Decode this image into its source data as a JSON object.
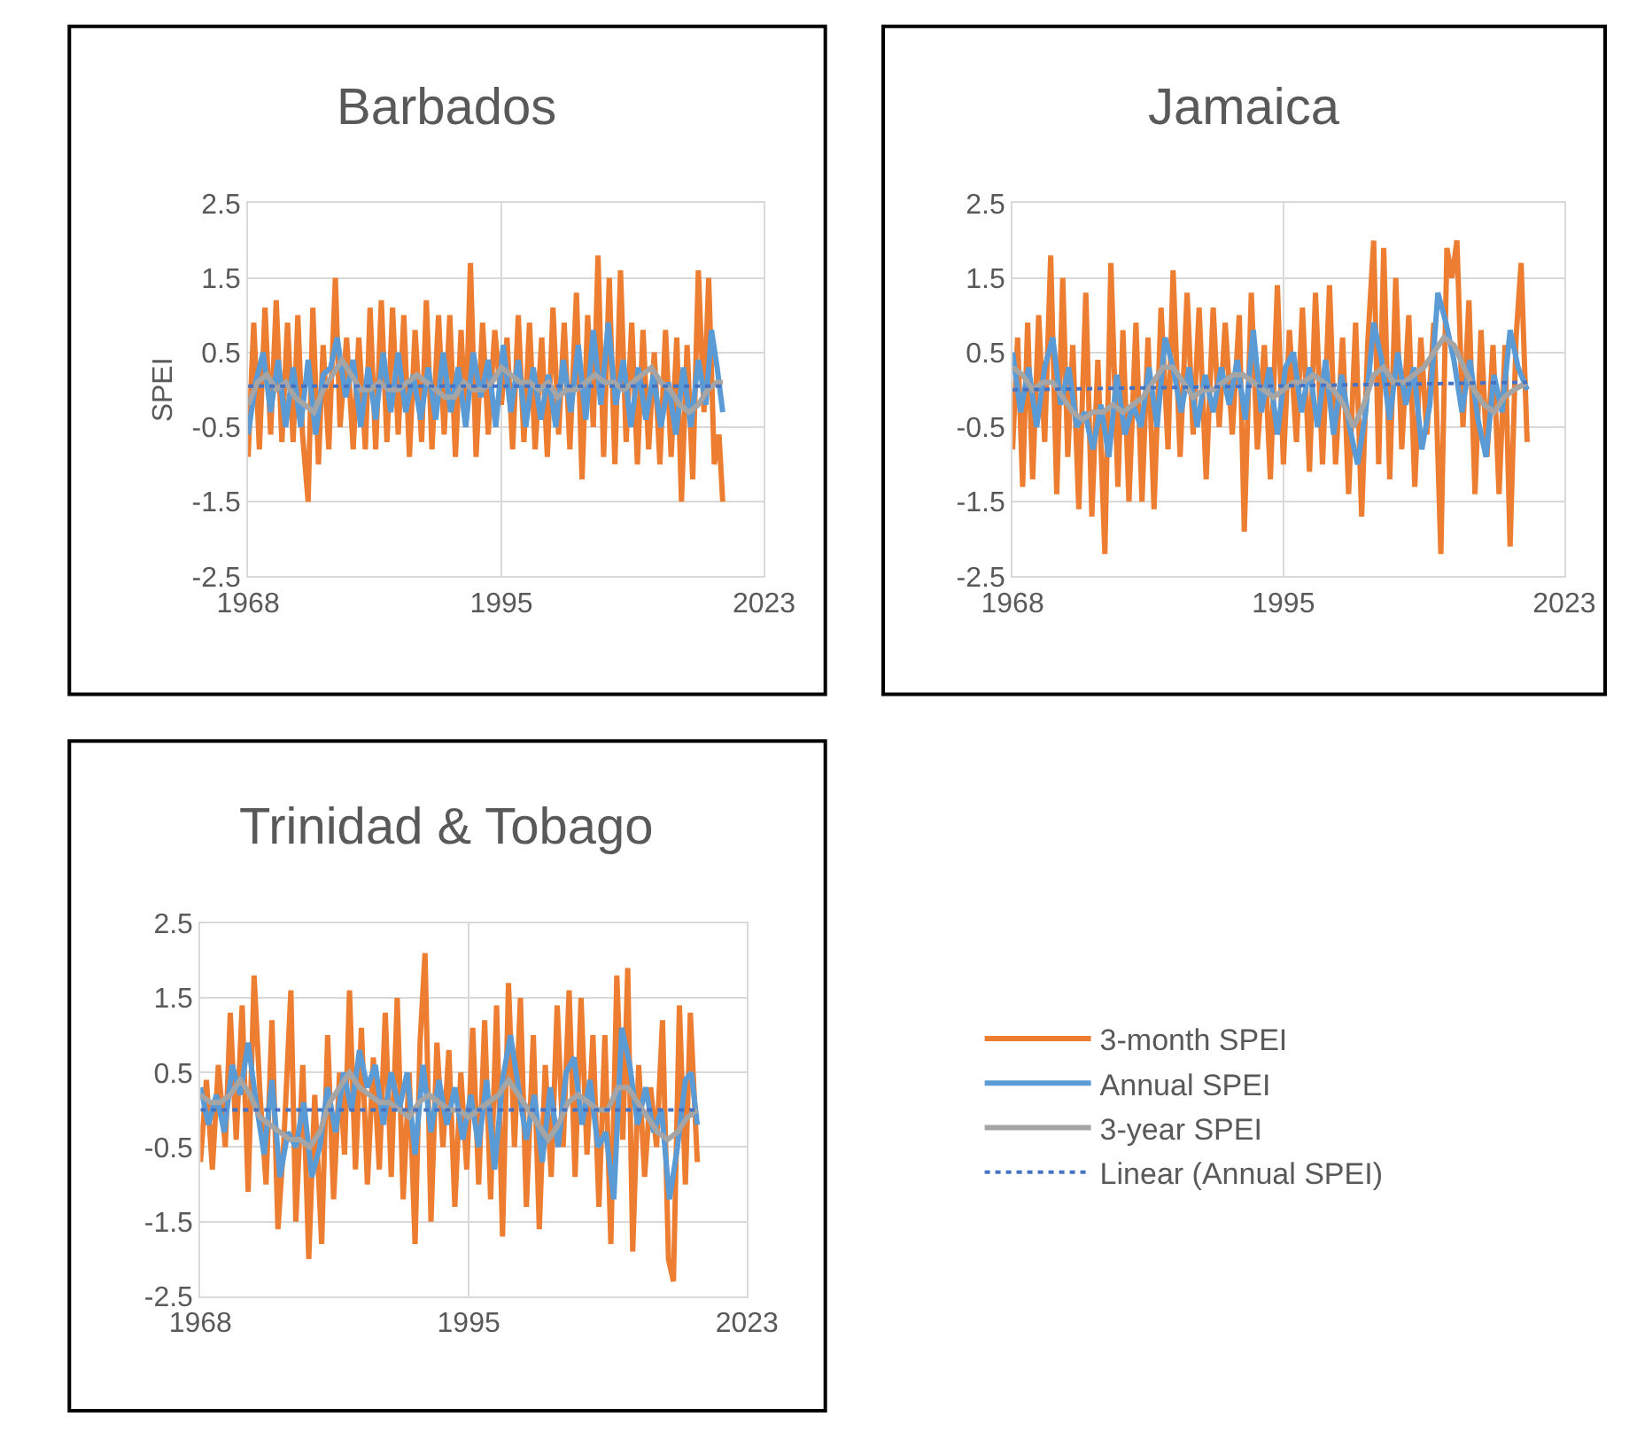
{
  "chart_data": [
    {
      "type": "line",
      "title": "Barbados",
      "ylabel": "SPEI",
      "xlim": [
        1968,
        2023
      ],
      "xticks": [
        1968,
        1995,
        2023
      ],
      "ylim": [
        -2.5,
        2.5
      ],
      "yticks": [
        -2.5,
        -1.5,
        -0.5,
        0.5,
        1.5,
        2.5
      ],
      "grid": true,
      "series": [
        {
          "color": "#ed7d31",
          "x": [
            1968.0,
            1968.6,
            1969.2,
            1969.8,
            1970.4,
            1971.0,
            1971.6,
            1972.2,
            1972.8,
            1973.3,
            1973.8,
            1974.4,
            1974.9,
            1975.5,
            1976.0,
            1976.6,
            1977.3,
            1977.8,
            1978.5,
            1979.2,
            1979.8,
            1980.5,
            1981.0,
            1981.6,
            1982.2,
            1982.8,
            1983.4,
            1984.0,
            1984.6,
            1985.2,
            1985.8,
            1986.5,
            1987.0,
            1987.6,
            1988.3,
            1988.9,
            1989.5,
            1990.1,
            1990.7,
            1991.2,
            1991.7,
            1992.3,
            1993.0,
            1993.6,
            1994.3,
            1995.0,
            1995.6,
            1996.2,
            1996.8,
            1997.4,
            1998.0,
            1998.6,
            1999.3,
            1999.9,
            2000.5,
            2001.1,
            2001.7,
            2002.3,
            2003.0,
            2003.6,
            2004.2,
            2004.8,
            2005.3,
            2005.9,
            2006.5,
            2007.1,
            2007.7,
            2008.3,
            2008.9,
            2009.5,
            2010.1,
            2010.7,
            2011.3,
            2011.9,
            2012.5,
            2013.1,
            2013.7,
            2014.2,
            2014.8,
            2015.4,
            2016.0,
            2016.6,
            2017.1,
            2017.7,
            2018.2,
            2018.6
          ],
          "values": [
            -0.9,
            0.9,
            -0.8,
            1.1,
            -0.6,
            1.2,
            -0.7,
            0.9,
            -0.7,
            1.0,
            -0.6,
            -1.5,
            1.1,
            -1.0,
            0.6,
            -0.8,
            1.5,
            -0.5,
            0.7,
            -0.8,
            0.7,
            -0.8,
            1.1,
            -0.8,
            1.2,
            -0.7,
            1.1,
            -0.6,
            1.0,
            -0.9,
            0.8,
            -0.7,
            1.2,
            -0.8,
            1.0,
            -0.6,
            1.0,
            -0.9,
            0.8,
            -0.5,
            1.7,
            -0.9,
            0.9,
            -0.6,
            0.8,
            -0.2,
            0.7,
            -0.8,
            1.0,
            -0.7,
            0.9,
            -0.8,
            0.7,
            -0.9,
            1.1,
            -0.6,
            0.9,
            -0.8,
            1.3,
            -1.2,
            1.0,
            -0.5,
            1.8,
            -0.9,
            1.5,
            -1.0,
            1.6,
            -0.7,
            0.9,
            -1.0,
            0.8,
            -0.8,
            0.5,
            -1.0,
            0.8,
            -0.9,
            0.7,
            -1.5,
            0.6,
            -1.2,
            1.6,
            -0.3,
            1.5,
            -1.0,
            -0.6,
            -1.5
          ]
        },
        {
          "color": "#5b9bd5",
          "x": [
            1968.0,
            1968.8,
            1969.6,
            1970.4,
            1971.2,
            1972.0,
            1972.8,
            1973.6,
            1974.4,
            1975.2,
            1976.0,
            1976.8,
            1977.5,
            1978.4,
            1979.2,
            1980.0,
            1980.8,
            1981.6,
            1982.4,
            1983.2,
            1984.0,
            1984.8,
            1985.6,
            1986.4,
            1987.2,
            1988.0,
            1988.8,
            1989.6,
            1990.4,
            1991.2,
            1992.0,
            1992.8,
            1993.6,
            1994.4,
            1995.2,
            1996.0,
            1996.8,
            1997.6,
            1998.4,
            1999.2,
            2000.0,
            2000.8,
            2001.6,
            2002.4,
            2003.2,
            2004.0,
            2004.8,
            2005.6,
            2006.4,
            2007.2,
            2008.0,
            2008.8,
            2009.6,
            2010.4,
            2011.2,
            2012.0,
            2012.8,
            2013.6,
            2014.4,
            2015.2,
            2016.0,
            2016.8,
            2017.4,
            2018.0,
            2018.6
          ],
          "values": [
            -0.6,
            0.1,
            0.5,
            -0.3,
            0.4,
            -0.5,
            0.3,
            -0.5,
            0.4,
            -0.6,
            0.2,
            0.3,
            0.7,
            -0.1,
            0.4,
            -0.5,
            0.3,
            -0.4,
            0.5,
            -0.3,
            0.5,
            -0.3,
            0.2,
            -0.4,
            0.3,
            -0.4,
            0.5,
            -0.3,
            0.3,
            -0.5,
            0.5,
            -0.1,
            0.4,
            -0.5,
            0.6,
            -0.3,
            0.4,
            -0.5,
            0.3,
            -0.4,
            0.2,
            -0.5,
            0.4,
            -0.3,
            0.6,
            -0.4,
            0.8,
            -0.2,
            0.9,
            -0.2,
            0.4,
            -0.5,
            0.3,
            -0.4,
            0.2,
            -0.5,
            0.1,
            -0.6,
            0.3,
            -0.5,
            0.4,
            -0.2,
            0.8,
            0.3,
            -0.3
          ]
        },
        {
          "color": "#a5a5a5",
          "x": [
            1968,
            1969,
            1970,
            1971,
            1972,
            1973,
            1974,
            1975,
            1976,
            1977,
            1978,
            1979,
            1980,
            1981,
            1982,
            1983,
            1984,
            1985,
            1986,
            1987,
            1988,
            1989,
            1990,
            1991,
            1992,
            1993,
            1994,
            1995,
            1996,
            1997,
            1998,
            1999,
            2000,
            2001,
            2002,
            2003,
            2004,
            2005,
            2006,
            2007,
            2008,
            2009,
            2010,
            2011,
            2012,
            2013,
            2014,
            2015,
            2016,
            2017,
            2018,
            2018.6
          ],
          "values": [
            -0.2,
            0.1,
            0.2,
            0.0,
            0.1,
            -0.1,
            -0.2,
            -0.3,
            0.0,
            0.2,
            0.4,
            0.2,
            0.0,
            0.0,
            0.1,
            0.0,
            0.0,
            0.1,
            0.2,
            0.1,
            0.0,
            -0.1,
            -0.1,
            0.1,
            0.0,
            0.0,
            0.1,
            0.3,
            0.2,
            0.1,
            0.1,
            0.0,
            0.1,
            -0.1,
            0.0,
            0.0,
            0.1,
            0.2,
            0.1,
            0.1,
            0.0,
            0.1,
            0.2,
            0.3,
            0.1,
            0.0,
            -0.2,
            -0.3,
            -0.2,
            0.0,
            0.1,
            0.1
          ]
        },
        {
          "color": "#4472c4",
          "line_style": "dotted",
          "x": [
            1968,
            2018.6
          ],
          "values": [
            0.05,
            0.05
          ]
        }
      ]
    },
    {
      "type": "line",
      "title": "Jamaica",
      "xlim": [
        1968,
        2023
      ],
      "xticks": [
        1968,
        1995,
        2023
      ],
      "ylim": [
        -2.5,
        2.5
      ],
      "yticks": [
        -2.5,
        -1.5,
        -0.5,
        0.5,
        1.5,
        2.5
      ],
      "grid": true,
      "series": [
        {
          "color": "#ed7d31",
          "x": [
            1968.0,
            1968.5,
            1969.0,
            1969.5,
            1970.0,
            1970.6,
            1971.2,
            1971.8,
            1972.4,
            1973.0,
            1973.5,
            1974.0,
            1974.6,
            1975.3,
            1975.9,
            1976.5,
            1977.2,
            1977.8,
            1978.5,
            1979.0,
            1979.6,
            1980.3,
            1980.9,
            1981.5,
            1982.1,
            1982.8,
            1983.5,
            1984.0,
            1984.7,
            1985.4,
            1986.0,
            1986.6,
            1987.3,
            1988.0,
            1988.6,
            1989.2,
            1989.9,
            1990.6,
            1991.1,
            1991.8,
            1992.4,
            1993.1,
            1993.7,
            1994.4,
            1995.0,
            1995.6,
            1996.3,
            1996.9,
            1997.6,
            1998.2,
            1998.9,
            1999.6,
            2000.2,
            2000.9,
            2001.5,
            2002.2,
            2002.8,
            2003.4,
            2004.0,
            2004.5,
            2005.0,
            2005.6,
            2006.2,
            2006.8,
            2007.5,
            2008.1,
            2008.7,
            2009.3,
            2010.0,
            2010.7,
            2011.3,
            2011.8,
            2012.3,
            2012.9,
            2013.5,
            2014.1,
            2014.7,
            2015.3,
            2015.9,
            2016.5,
            2017.1,
            2017.6,
            2018.2,
            2018.7,
            2019.3
          ],
          "values": [
            -0.8,
            0.7,
            -1.3,
            0.9,
            -1.2,
            1.0,
            -0.7,
            1.8,
            -1.4,
            1.5,
            -0.9,
            0.6,
            -1.6,
            1.3,
            -1.7,
            0.4,
            -2.2,
            1.7,
            -1.3,
            0.8,
            -1.5,
            0.9,
            -1.5,
            0.7,
            -1.6,
            1.1,
            -0.8,
            1.6,
            -0.9,
            1.3,
            -0.6,
            1.1,
            -1.2,
            1.1,
            -0.5,
            0.9,
            -0.6,
            1.0,
            -1.9,
            1.3,
            -0.8,
            0.6,
            -1.2,
            1.4,
            -1.0,
            0.8,
            -0.7,
            1.1,
            -1.1,
            1.3,
            -1.0,
            1.4,
            -1.0,
            0.7,
            -1.4,
            0.9,
            -1.7,
            0.6,
            2.0,
            -1.0,
            1.9,
            -1.2,
            1.5,
            -0.8,
            1.0,
            -1.3,
            0.7,
            -0.6,
            0.9,
            -2.2,
            1.9,
            1.5,
            2.0,
            -0.5,
            1.2,
            -1.4,
            0.8,
            -0.9,
            0.6,
            -1.4,
            0.6,
            -2.1,
            0.7,
            1.7,
            -0.7
          ]
        },
        {
          "color": "#5b9bd5",
          "x": [
            1968.0,
            1968.8,
            1969.6,
            1970.4,
            1971.2,
            1972.0,
            1972.8,
            1973.6,
            1974.4,
            1975.2,
            1976.0,
            1976.8,
            1977.6,
            1978.4,
            1979.2,
            1980.0,
            1980.8,
            1981.6,
            1982.4,
            1983.2,
            1984.0,
            1984.8,
            1985.6,
            1986.4,
            1987.2,
            1988.0,
            1988.8,
            1989.6,
            1990.4,
            1991.2,
            1992.0,
            1992.8,
            1993.6,
            1994.4,
            1995.2,
            1996.0,
            1996.8,
            1997.6,
            1998.4,
            1999.2,
            2000.0,
            2000.8,
            2001.6,
            2002.4,
            2003.2,
            2004.0,
            2004.8,
            2005.6,
            2006.4,
            2007.2,
            2008.0,
            2008.8,
            2009.6,
            2010.4,
            2011.2,
            2012.0,
            2012.8,
            2013.6,
            2014.4,
            2015.2,
            2016.0,
            2016.8,
            2017.6,
            2018.4,
            2019.3
          ],
          "values": [
            0.5,
            -0.3,
            0.3,
            -0.5,
            0.3,
            0.7,
            -0.2,
            0.3,
            -0.5,
            -0.3,
            -0.8,
            -0.2,
            -0.9,
            0.2,
            -0.6,
            -0.2,
            -0.5,
            0.3,
            -0.5,
            0.7,
            0.3,
            -0.3,
            0.3,
            -0.5,
            0.2,
            -0.3,
            0.3,
            -0.2,
            0.4,
            -0.4,
            0.8,
            -0.3,
            0.3,
            -0.6,
            0.3,
            0.5,
            -0.3,
            0.3,
            -0.5,
            0.4,
            -0.6,
            0.2,
            -0.5,
            -1.0,
            -0.3,
            0.9,
            0.4,
            -0.4,
            0.5,
            -0.2,
            0.3,
            -0.8,
            -0.2,
            1.3,
            0.9,
            0.4,
            -0.3,
            0.4,
            -0.4,
            -0.9,
            0.2,
            -0.3,
            0.8,
            0.3,
            0.0
          ]
        },
        {
          "color": "#a5a5a5",
          "x": [
            1968,
            1969,
            1970,
            1971,
            1972,
            1973,
            1974,
            1975,
            1976,
            1977,
            1978,
            1979,
            1980,
            1981,
            1982,
            1983,
            1984,
            1985,
            1986,
            1987,
            1988,
            1989,
            1990,
            1991,
            1992,
            1993,
            1994,
            1995,
            1996,
            1997,
            1998,
            1999,
            2000,
            2001,
            2002,
            2003,
            2004,
            2005,
            2006,
            2007,
            2008,
            2009,
            2010,
            2011,
            2012,
            2013,
            2014,
            2015,
            2016,
            2017,
            2018,
            2019.3
          ],
          "values": [
            0.3,
            0.2,
            0.0,
            0.1,
            0.1,
            -0.1,
            -0.3,
            -0.4,
            -0.3,
            -0.3,
            -0.2,
            -0.3,
            -0.2,
            -0.1,
            0.1,
            0.3,
            0.3,
            0.1,
            -0.1,
            0.0,
            0.0,
            0.1,
            0.2,
            0.2,
            0.1,
            0.0,
            -0.1,
            0.0,
            0.1,
            0.1,
            0.2,
            0.1,
            0.0,
            -0.2,
            -0.5,
            -0.2,
            0.2,
            0.3,
            0.1,
            0.1,
            0.2,
            0.3,
            0.5,
            0.7,
            0.6,
            0.3,
            0.0,
            -0.2,
            -0.3,
            -0.1,
            0.0,
            0.1
          ]
        },
        {
          "color": "#4472c4",
          "line_style": "dotted",
          "x": [
            1968,
            2019.3
          ],
          "values": [
            0.0,
            0.1
          ]
        }
      ]
    },
    {
      "type": "line",
      "title": "Trinidad & Tobago",
      "xlim": [
        1968,
        2023
      ],
      "xticks": [
        1968,
        1995,
        2023
      ],
      "ylim": [
        -2.5,
        2.5
      ],
      "yticks": [
        -2.5,
        -1.5,
        -0.5,
        0.5,
        1.5,
        2.5
      ],
      "grid": true,
      "legend": "right",
      "series": [
        {
          "name": "3-month SPEI",
          "color": "#ed7d31",
          "x": [
            1968.0,
            1968.6,
            1969.2,
            1969.8,
            1970.5,
            1971.0,
            1971.6,
            1972.2,
            1972.8,
            1973.4,
            1974.0,
            1974.6,
            1975.2,
            1975.8,
            1976.4,
            1977.1,
            1977.6,
            1978.3,
            1978.9,
            1979.5,
            1980.2,
            1980.8,
            1981.4,
            1982.0,
            1982.5,
            1983.0,
            1983.6,
            1984.2,
            1984.8,
            1985.4,
            1986.0,
            1986.6,
            1987.2,
            1987.8,
            1988.4,
            1989.0,
            1989.6,
            1990.1,
            1990.6,
            1991.2,
            1991.8,
            1992.4,
            1993.0,
            1993.6,
            1994.2,
            1994.8,
            1995.4,
            1996.0,
            1996.6,
            1997.2,
            1997.8,
            1998.4,
            1999.0,
            1999.6,
            2000.2,
            2000.8,
            2001.5,
            2002.1,
            2002.7,
            2003.3,
            2003.9,
            2004.5,
            2005.1,
            2005.7,
            2006.3,
            2006.9,
            2007.5,
            2008.1,
            2008.7,
            2009.3,
            2009.9,
            2010.5,
            2011.0,
            2011.5,
            2012.1,
            2012.7,
            2013.3,
            2013.9,
            2014.5,
            2015.1,
            2015.6,
            2016.2,
            2016.8,
            2017.3,
            2018.0
          ],
          "values": [
            -0.7,
            0.4,
            -0.8,
            0.6,
            -0.5,
            1.3,
            -0.4,
            1.4,
            -1.1,
            1.8,
            0.2,
            -1.0,
            1.2,
            -1.6,
            -0.4,
            1.6,
            -1.5,
            0.6,
            -2.0,
            0.2,
            -1.8,
            1.0,
            -1.2,
            0.5,
            -0.6,
            1.6,
            -0.8,
            1.1,
            -1.0,
            0.7,
            -0.8,
            1.3,
            -0.9,
            1.5,
            -1.2,
            0.5,
            -1.8,
            0.9,
            2.1,
            -1.5,
            0.9,
            -0.5,
            0.8,
            -1.3,
            0.5,
            -0.8,
            1.1,
            -1.0,
            1.2,
            -1.2,
            1.4,
            -1.7,
            1.7,
            -0.5,
            1.5,
            -1.3,
            1.0,
            -1.6,
            0.6,
            -0.9,
            1.4,
            -0.5,
            1.6,
            -0.9,
            1.5,
            -0.6,
            1.0,
            -1.3,
            1.0,
            -1.8,
            1.8,
            -0.4,
            1.9,
            -1.9,
            0.6,
            -0.9,
            0.3,
            -0.5,
            1.2,
            -2.0,
            -2.3,
            1.4,
            -1.0,
            1.3,
            -0.7
          ]
        },
        {
          "name": "Annual SPEI",
          "color": "#5b9bd5",
          "x": [
            1968.0,
            1968.8,
            1969.6,
            1970.4,
            1971.2,
            1972.0,
            1972.8,
            1973.6,
            1974.4,
            1975.2,
            1976.0,
            1976.8,
            1977.6,
            1978.4,
            1979.2,
            1980.0,
            1980.8,
            1981.6,
            1982.4,
            1983.2,
            1984.0,
            1984.8,
            1985.6,
            1986.4,
            1987.2,
            1988.0,
            1988.8,
            1989.6,
            1990.4,
            1991.2,
            1992.0,
            1992.8,
            1993.6,
            1994.4,
            1995.2,
            1996.0,
            1996.8,
            1997.6,
            1998.4,
            1999.2,
            2000.0,
            2000.8,
            2001.6,
            2002.4,
            2003.2,
            2004.0,
            2004.8,
            2005.6,
            2006.4,
            2007.2,
            2008.0,
            2008.8,
            2009.6,
            2010.4,
            2011.2,
            2012.0,
            2012.8,
            2013.6,
            2014.4,
            2015.2,
            2016.0,
            2016.8,
            2017.4,
            2018.0
          ],
          "values": [
            0.3,
            -0.2,
            0.2,
            -0.3,
            0.6,
            0.2,
            0.9,
            0.1,
            -0.6,
            0.4,
            -0.9,
            -0.3,
            -0.5,
            0.1,
            -0.9,
            -0.5,
            0.3,
            -0.3,
            0.5,
            0.0,
            0.8,
            0.3,
            0.6,
            -0.2,
            0.5,
            0.0,
            0.5,
            -0.6,
            0.6,
            -0.3,
            0.4,
            -0.2,
            0.3,
            -0.4,
            0.2,
            -0.5,
            0.4,
            -0.8,
            0.4,
            1.0,
            0.3,
            -0.4,
            0.2,
            -0.7,
            0.3,
            -0.5,
            0.5,
            0.7,
            -0.2,
            0.4,
            -0.5,
            -0.3,
            -1.2,
            1.1,
            0.6,
            -0.2,
            0.3,
            -0.3,
            0.0,
            -1.2,
            -0.5,
            0.4,
            0.5,
            -0.2
          ]
        },
        {
          "name": "3-year SPEI",
          "color": "#a5a5a5",
          "x": [
            1968,
            1969,
            1970,
            1971,
            1972,
            1973,
            1974,
            1975,
            1976,
            1977,
            1978,
            1979,
            1980,
            1981,
            1982,
            1983,
            1984,
            1985,
            1986,
            1987,
            1988,
            1989,
            1990,
            1991,
            1992,
            1993,
            1994,
            1995,
            1996,
            1997,
            1998,
            1999,
            2000,
            2001,
            2002,
            2003,
            2004,
            2005,
            2006,
            2007,
            2008,
            2009,
            2010,
            2011,
            2012,
            2013,
            2014,
            2015,
            2016,
            2017,
            2018
          ],
          "values": [
            0.2,
            0.1,
            0.1,
            0.2,
            0.4,
            0.2,
            -0.1,
            -0.2,
            -0.3,
            -0.4,
            -0.4,
            -0.5,
            -0.3,
            0.1,
            0.3,
            0.5,
            0.3,
            0.2,
            0.1,
            0.1,
            0.0,
            -0.1,
            0.1,
            0.2,
            0.1,
            0.0,
            0.0,
            -0.1,
            0.0,
            0.1,
            0.2,
            0.4,
            0.2,
            0.0,
            -0.2,
            -0.4,
            -0.2,
            0.1,
            0.2,
            0.1,
            0.0,
            0.0,
            0.3,
            0.3,
            0.1,
            -0.1,
            -0.3,
            -0.4,
            -0.3,
            -0.1,
            0.0
          ]
        },
        {
          "name": "Linear (Annual SPEI)",
          "color": "#4472c4",
          "line_style": "dotted",
          "x": [
            1968,
            2018
          ],
          "values": [
            0.0,
            0.0
          ]
        }
      ]
    }
  ]
}
